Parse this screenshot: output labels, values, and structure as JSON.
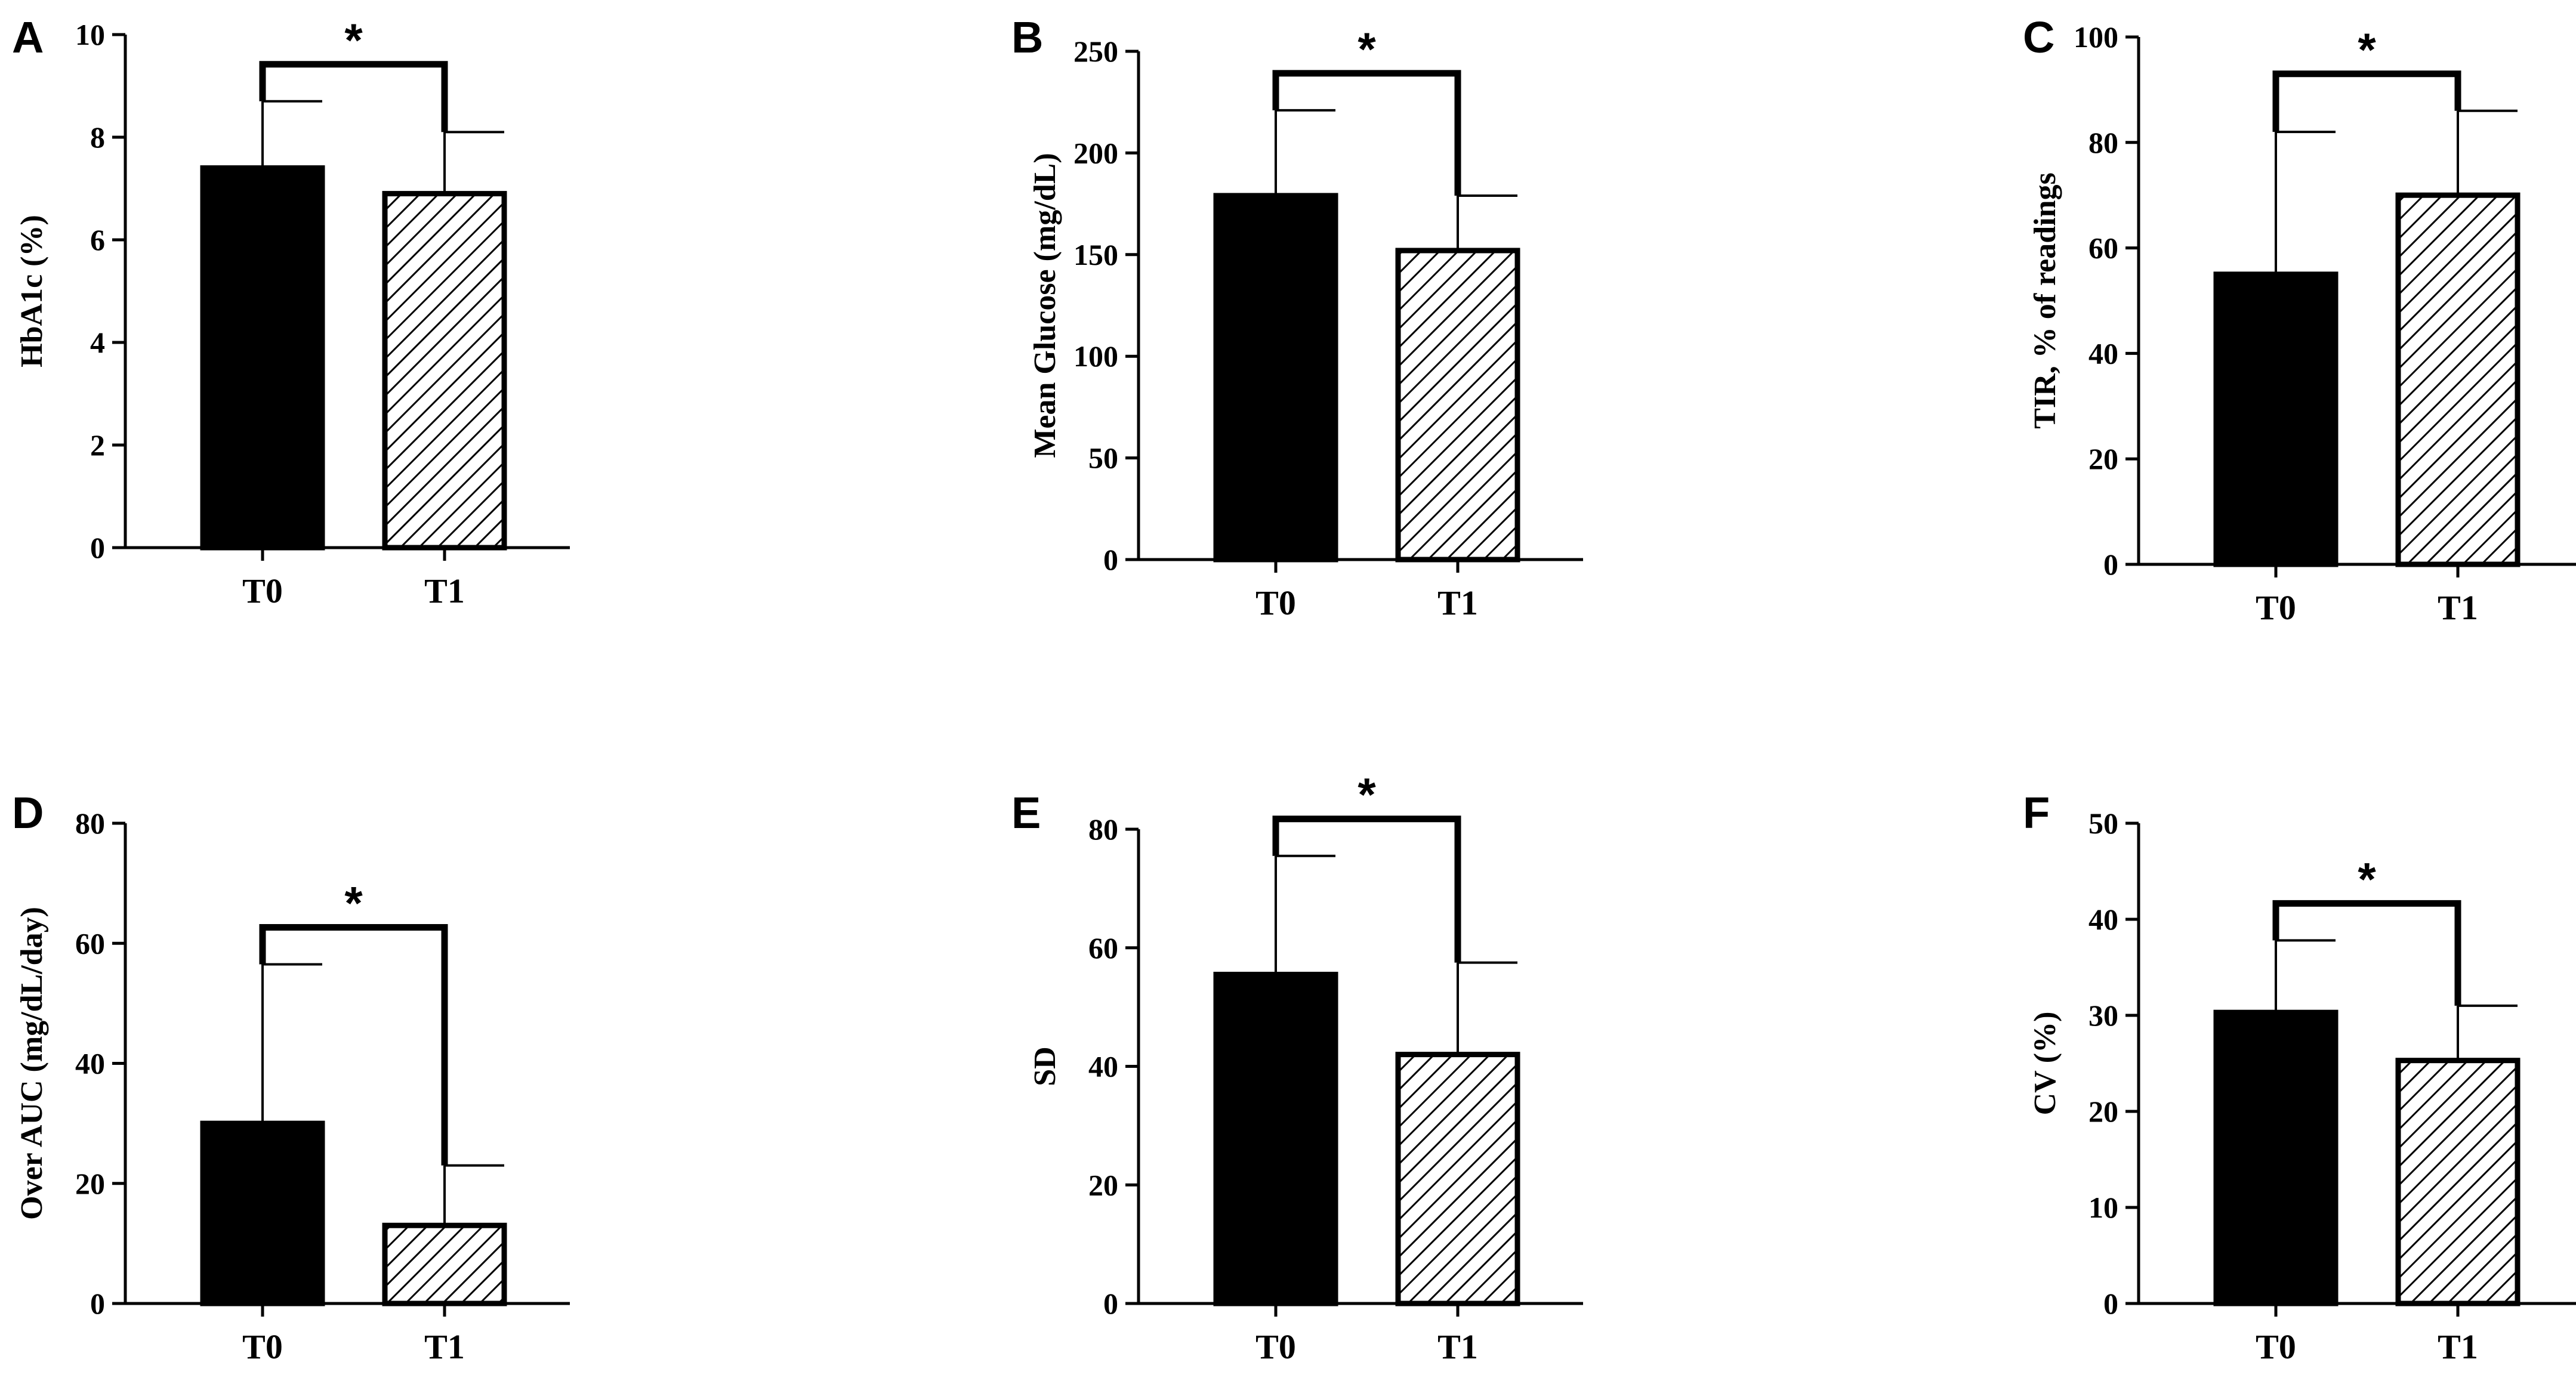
{
  "figure": {
    "colors": {
      "t0_fill": "#000000",
      "t1_fill": "#ffffff",
      "hatch": "#000000",
      "axis": "#000000"
    }
  },
  "chart_data": [
    {
      "panel": "A",
      "type": "bar",
      "ylabel": "HbA1c (%)",
      "categories": [
        "T0",
        "T1"
      ],
      "values": [
        7.4,
        6.9
      ],
      "errors": [
        1.3,
        1.2
      ],
      "ylim": [
        0,
        10
      ],
      "yticks": [
        0,
        2,
        4,
        6,
        8,
        10
      ],
      "significance": "*"
    },
    {
      "panel": "B",
      "type": "bar",
      "ylabel": "Mean Glucose (mg/dL)",
      "categories": [
        "T0",
        "T1"
      ],
      "values": [
        179,
        152
      ],
      "errors": [
        42,
        27
      ],
      "ylim": [
        0,
        250
      ],
      "yticks": [
        0,
        50,
        100,
        150,
        200,
        250
      ],
      "significance": "*"
    },
    {
      "panel": "C",
      "type": "bar",
      "ylabel": "TIR, % of readings",
      "categories": [
        "T0",
        "T1"
      ],
      "values": [
        55,
        70
      ],
      "errors": [
        27,
        16
      ],
      "ylim": [
        0,
        100
      ],
      "yticks": [
        0,
        20,
        40,
        60,
        80,
        100
      ],
      "significance": "*"
    },
    {
      "panel": "D",
      "type": "bar",
      "ylabel": "Over AUC (mg/dL/day)",
      "categories": [
        "T0",
        "T1"
      ],
      "values": [
        30,
        13
      ],
      "errors": [
        26.5,
        10
      ],
      "ylim": [
        0,
        80
      ],
      "yticks": [
        0,
        20,
        40,
        60,
        80
      ],
      "significance": "*"
    },
    {
      "panel": "E",
      "type": "bar",
      "ylabel": "SD",
      "categories": [
        "T0",
        "T1"
      ],
      "values": [
        55.5,
        42
      ],
      "errors": [
        20,
        15.5
      ],
      "ylim": [
        0,
        80
      ],
      "yticks": [
        0,
        20,
        40,
        60,
        80
      ],
      "significance": "*"
    },
    {
      "panel": "F",
      "type": "bar",
      "ylabel": "CV (%)",
      "categories": [
        "T0",
        "T1"
      ],
      "values": [
        30.3,
        25.3
      ],
      "errors": [
        7.5,
        5.7
      ],
      "ylim": [
        0,
        50
      ],
      "yticks": [
        0,
        10,
        20,
        30,
        40,
        50
      ],
      "significance": "*"
    }
  ]
}
